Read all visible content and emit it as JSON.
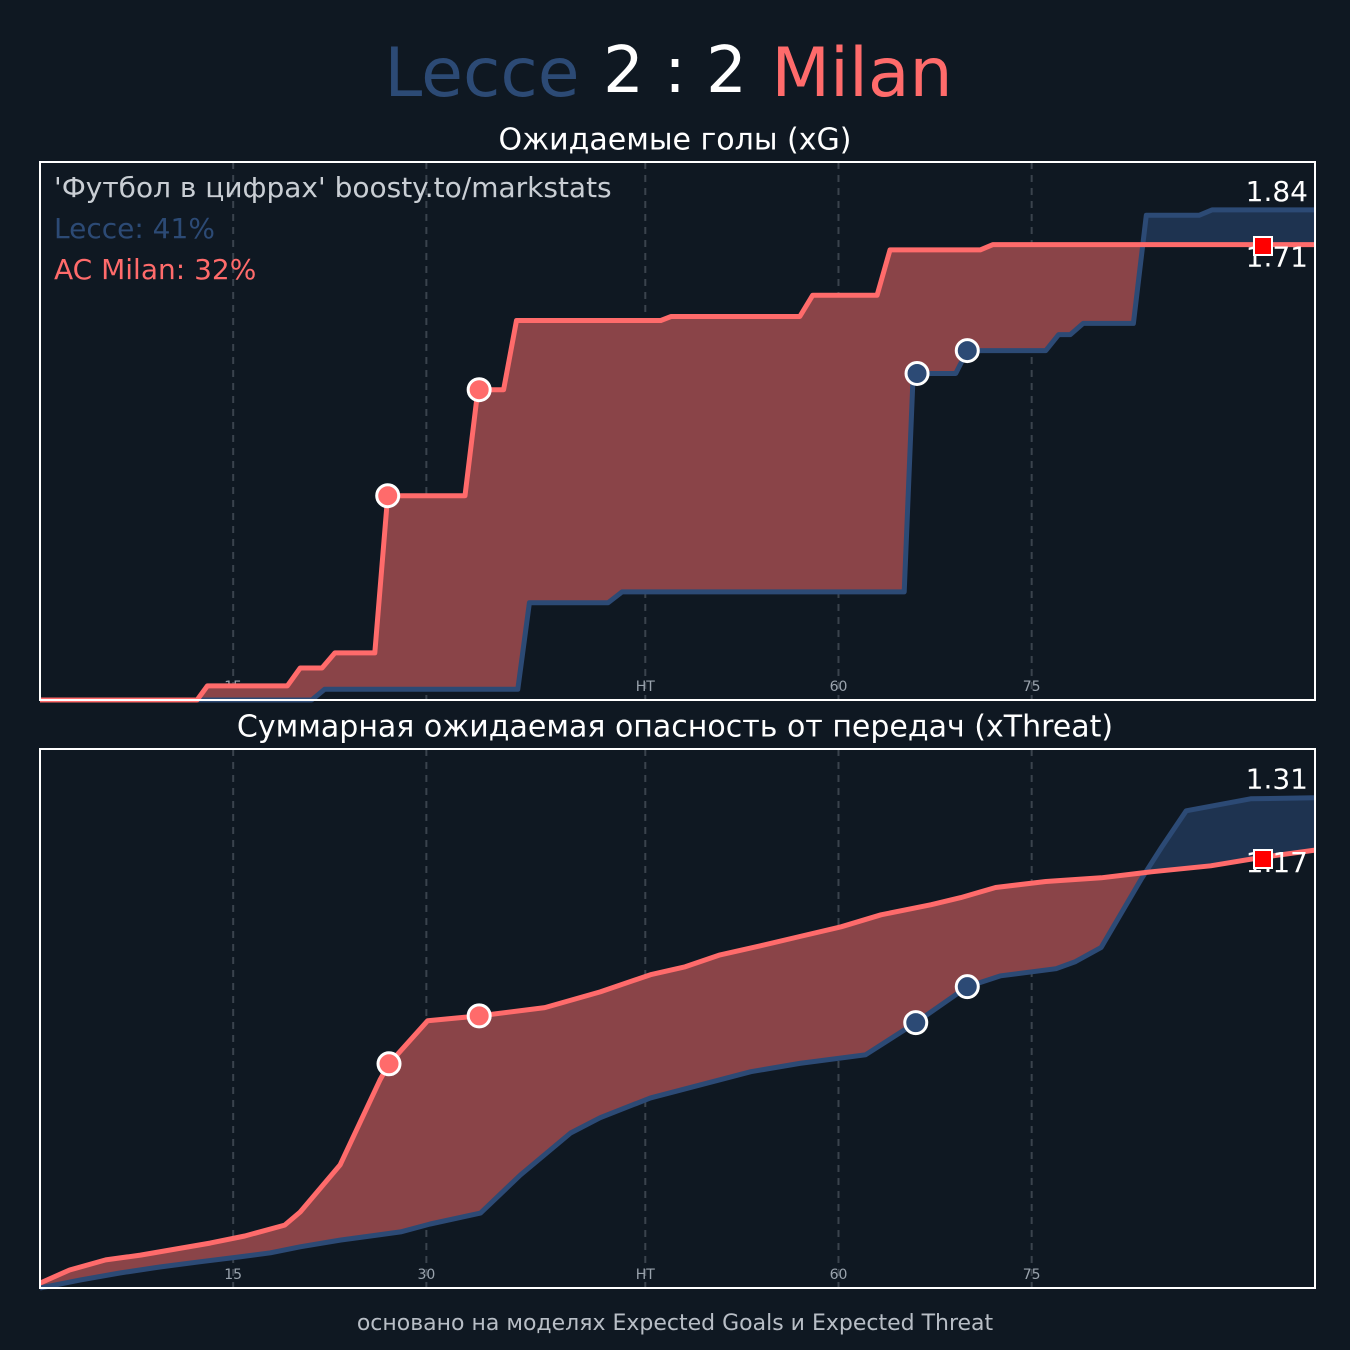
{
  "header": {
    "home": "Lecce",
    "score": "2 : 2",
    "away": "Milan"
  },
  "footer": "основано на моделях Expected Goals и Expected Threat",
  "chart_data": [
    {
      "type": "line",
      "title": "Ожидаемые голы (xG)",
      "annotations": [
        "'Футбол в цифрах' boosty.to/markstats",
        "Lecce: 41%",
        "AC Milan: 32%"
      ],
      "xlim": [
        0,
        99
      ],
      "ylim": [
        0,
        2.02
      ],
      "xticks": [
        15,
        30,
        {
          "value": 47,
          "label": "HT"
        },
        {
          "value": 62,
          "label": "60"
        },
        {
          "value": 77,
          "label": "75"
        }
      ],
      "grid": true,
      "series": [
        {
          "name": "Lecce",
          "color": "#2c4a75",
          "fill": "#1e3350",
          "x": [
            0,
            21.1,
            22.1,
            37.1,
            38,
            44.1,
            45.2,
            67.1,
            67.8,
            71.1,
            72,
            78.1,
            79.1,
            80,
            81,
            84.9,
            85.9,
            90,
            91,
            99
          ],
          "values": [
            0,
            0,
            0.04,
            0.04,
            0.365,
            0.365,
            0.406,
            0.406,
            1.226,
            1.226,
            1.312,
            1.312,
            1.372,
            1.372,
            1.414,
            1.414,
            1.82,
            1.82,
            1.84,
            1.84
          ],
          "goal_x": [
            68.1,
            72
          ],
          "goal_y": [
            1.226,
            1.312
          ]
        },
        {
          "name": "Milan",
          "color": "#ff6b6b",
          "fill": "#8a4448",
          "x": [
            0,
            12.2,
            13,
            19.2,
            20.2,
            21.9,
            22.9,
            26,
            27,
            33,
            34,
            36,
            37,
            48.2,
            49,
            59,
            60,
            65,
            66,
            73,
            74,
            99
          ],
          "values": [
            0,
            0,
            0.053,
            0.053,
            0.12,
            0.12,
            0.177,
            0.177,
            0.767,
            0.767,
            1.165,
            1.165,
            1.425,
            1.425,
            1.44,
            1.44,
            1.52,
            1.52,
            1.69,
            1.69,
            1.71,
            1.71
          ],
          "goal_x": [
            27,
            34.1
          ],
          "goal_y": [
            0.767,
            1.165
          ]
        }
      ]
    },
    {
      "type": "line",
      "title": "Суммарная ожидаемая опасность от передач (xThreat)",
      "xlim": [
        0,
        99
      ],
      "ylim": [
        0,
        1.44
      ],
      "xticks": [
        15,
        30,
        {
          "value": 47,
          "label": "HT"
        },
        {
          "value": 62,
          "label": "60"
        },
        {
          "value": 77,
          "label": "75"
        }
      ],
      "grid": true,
      "series": [
        {
          "name": "Lecce",
          "color": "#2c4a75",
          "fill": "#1e3350",
          "x": [
            0,
            3.1,
            6.2,
            9.3,
            12.4,
            15.5,
            17.9,
            20.2,
            23.3,
            28,
            30.3,
            34.2,
            37.3,
            41.2,
            43.5,
            47.4,
            51.3,
            55.2,
            59,
            64.1,
            68,
            72,
            74.6,
            78.9,
            80.4,
            82.4,
            85.5,
            87.1,
            89,
            94,
            99
          ],
          "values": [
            0,
            0.021,
            0.04,
            0.056,
            0.07,
            0.083,
            0.094,
            0.11,
            0.128,
            0.15,
            0.171,
            0.2,
            0.302,
            0.414,
            0.455,
            0.508,
            0.543,
            0.578,
            0.6,
            0.623,
            0.709,
            0.805,
            0.834,
            0.853,
            0.872,
            0.91,
            1.092,
            1.178,
            1.275,
            1.307,
            1.31
          ],
          "goal_x": [
            68,
            72
          ],
          "goal_y": [
            0.709,
            0.805
          ]
        },
        {
          "name": "Milan",
          "color": "#ff6b6b",
          "fill": "#8a4448",
          "x": [
            0,
            2.3,
            5.1,
            7.8,
            10.5,
            13.2,
            15.9,
            19,
            20.2,
            23.3,
            26.4,
            27.1,
            30.1,
            34.1,
            39.2,
            43.5,
            47.4,
            50.1,
            52.8,
            55.9,
            59,
            62.2,
            65.3,
            69.2,
            71.5,
            74.2,
            78.1,
            82.4,
            86.3,
            90.9,
            94.8,
            99
          ],
          "values": [
            0.013,
            0.048,
            0.075,
            0.088,
            0.104,
            0.12,
            0.139,
            0.168,
            0.203,
            0.329,
            0.556,
            0.599,
            0.714,
            0.727,
            0.749,
            0.791,
            0.837,
            0.858,
            0.89,
            0.914,
            0.939,
            0.965,
            0.997,
            1.024,
            1.043,
            1.07,
            1.086,
            1.096,
            1.112,
            1.128,
            1.15,
            1.17
          ],
          "goal_x": [
            27.1,
            34.1
          ],
          "goal_y": [
            0.599,
            0.727
          ]
        }
      ]
    }
  ]
}
